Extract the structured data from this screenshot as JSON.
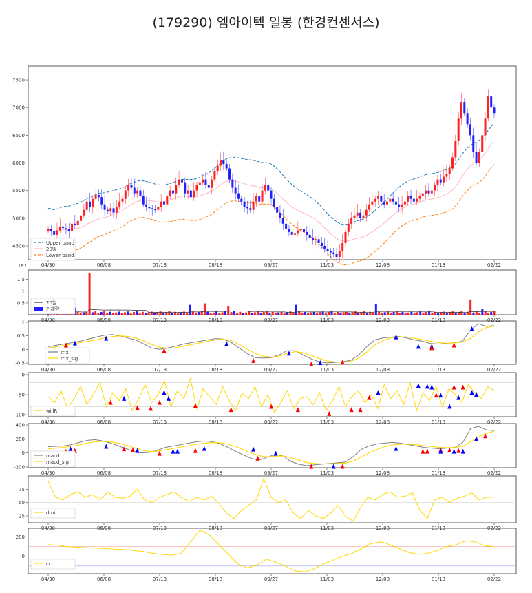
{
  "title": "(179290) 엠아이텍 일봉 (한경컨센서스)",
  "colors": {
    "up": "#ff2020",
    "down": "#2020ff",
    "upper": "#1f77b4",
    "lower": "#ff7f0e",
    "ma": "#ffb6c1",
    "signal": "#ffd700",
    "main": "#808080",
    "up_marker": "#ff0000",
    "down_marker": "#0000ff",
    "ref_red": "#f4a0a0",
    "ref_blue": "#a0a0f4",
    "ref_gray": "#c8c8c8"
  },
  "x_ticks": [
    "04/30",
    "06/08",
    "07/13",
    "08/18",
    "09/27",
    "11/03",
    "12/08",
    "01/13",
    "02/22"
  ],
  "chart_data": [
    {
      "type": "candlestick",
      "panel": "price",
      "ylim": [
        4250,
        7750
      ],
      "yticks": [
        4500,
        5000,
        5500,
        6000,
        6500,
        7000,
        7500
      ],
      "close": [
        4800,
        4760,
        4700,
        4780,
        4850,
        4820,
        4800,
        4760,
        4900,
        4880,
        4950,
        5050,
        5150,
        5300,
        5200,
        5350,
        5420,
        5380,
        5250,
        5150,
        5120,
        5180,
        5100,
        5200,
        5300,
        5350,
        5500,
        5600,
        5550,
        5450,
        5500,
        5400,
        5250,
        5200,
        5180,
        5160,
        5150,
        5200,
        5300,
        5250,
        5400,
        5500,
        5450,
        5600,
        5700,
        5650,
        5450,
        5500,
        5380,
        5500,
        5600,
        5650,
        5700,
        5600,
        5550,
        5700,
        5850,
        5950,
        6050,
        5980,
        5900,
        5700,
        5550,
        5450,
        5350,
        5300,
        5200,
        5180,
        5150,
        5300,
        5400,
        5300,
        5500,
        5600,
        5500,
        5350,
        5200,
        5100,
        5000,
        4900,
        4800,
        4750,
        4700,
        4720,
        4780,
        4800,
        4750,
        4700,
        4650,
        4600,
        4620,
        4550,
        4500,
        4450,
        4400,
        4380,
        4350,
        4300,
        4400,
        4550,
        4750,
        4900,
        5000,
        5050,
        5100,
        5000,
        5050,
        5150,
        5250,
        5300,
        5350,
        5400,
        5300,
        5250,
        5300,
        5350,
        5300,
        5250,
        5200,
        5250,
        5300,
        5400,
        5350,
        5300,
        5350,
        5400,
        5450,
        5500,
        5450,
        5500,
        5600,
        5700,
        5650,
        5750,
        5800,
        5900,
        6100,
        6400,
        6800,
        7100,
        6900,
        6700,
        6500,
        6200,
        6000,
        6200,
        6500,
        6800,
        7200,
        7000,
        6900
      ],
      "title": "",
      "legend": [
        "Upper band",
        "20일",
        "Lower band"
      ],
      "legend_position": "lower-left"
    },
    {
      "type": "bar",
      "panel": "volume",
      "ylim": [
        0,
        1.9
      ],
      "yticks": [
        0.5,
        1.0,
        1.5
      ],
      "scale_note": "1e7",
      "spikes": [
        {
          "index": 14,
          "value": 1.78
        },
        {
          "index": 9,
          "value": 0.3
        },
        {
          "index": 48,
          "value": 0.42
        },
        {
          "index": 53,
          "value": 0.48
        },
        {
          "index": 61,
          "value": 0.38
        },
        {
          "index": 84,
          "value": 0.42
        },
        {
          "index": 111,
          "value": 0.47
        },
        {
          "index": 143,
          "value": 0.65
        },
        {
          "index": 147,
          "value": 0.25
        }
      ],
      "base_value": 0.06,
      "legend": [
        "20일",
        "거래량"
      ],
      "legend_position": "center-left"
    },
    {
      "type": "line",
      "panel": "trix",
      "ylim": [
        -0.55,
        1.05
      ],
      "yticks": [
        -0.5,
        0.0,
        0.5,
        1.0
      ],
      "trix": [
        0.1,
        0.15,
        0.2,
        0.25,
        0.3,
        0.38,
        0.45,
        0.52,
        0.55,
        0.5,
        0.42,
        0.35,
        0.2,
        0.05,
        0.0,
        0.05,
        0.12,
        0.2,
        0.25,
        0.3,
        0.35,
        0.4,
        0.38,
        0.25,
        0.05,
        -0.15,
        -0.3,
        -0.32,
        -0.3,
        -0.2,
        -0.05,
        -0.05,
        -0.2,
        -0.35,
        -0.45,
        -0.5,
        -0.48,
        -0.45,
        -0.4,
        -0.2,
        0.1,
        0.35,
        0.42,
        0.45,
        0.48,
        0.42,
        0.35,
        0.3,
        0.22,
        0.2,
        0.22,
        0.25,
        0.3,
        0.7,
        0.95,
        0.85,
        0.88
      ],
      "trix_sig": [
        0.05,
        0.1,
        0.15,
        0.2,
        0.25,
        0.3,
        0.35,
        0.42,
        0.47,
        0.5,
        0.48,
        0.42,
        0.32,
        0.18,
        0.08,
        0.04,
        0.06,
        0.12,
        0.18,
        0.24,
        0.3,
        0.35,
        0.38,
        0.33,
        0.18,
        0.0,
        -0.15,
        -0.25,
        -0.28,
        -0.25,
        -0.15,
        -0.08,
        -0.12,
        -0.22,
        -0.33,
        -0.42,
        -0.46,
        -0.47,
        -0.44,
        -0.32,
        -0.1,
        0.15,
        0.32,
        0.42,
        0.46,
        0.46,
        0.41,
        0.36,
        0.3,
        0.25,
        0.23,
        0.24,
        0.27,
        0.4,
        0.65,
        0.8,
        0.86
      ],
      "buy_markers": [
        0.22,
        0.07,
        0.54,
        0.74,
        0.93
      ],
      "sell_markers": [
        0.06,
        0.34,
        0.53,
        0.85,
        0.64,
        0.77
      ],
      "legend": [
        "trix",
        "trix_sig"
      ],
      "legend_position": "lower-left"
    },
    {
      "type": "line",
      "panel": "willR",
      "ylim": [
        -105,
        5
      ],
      "yticks": [
        -100,
        -50,
        0
      ],
      "ref_lines": [
        -20,
        -80
      ],
      "willR": [
        -55,
        -70,
        -40,
        -85,
        -60,
        -30,
        -75,
        -50,
        -20,
        -80,
        -45,
        -65,
        -35,
        -90,
        -60,
        -25,
        -70,
        -50,
        -15,
        -80,
        -40,
        -60,
        -10,
        -85,
        -35,
        -55,
        -75,
        -30,
        -65,
        -90,
        -45,
        -60,
        -30,
        -80,
        -50,
        -95,
        -70,
        -40,
        -85,
        -60,
        -55,
        -75,
        -45,
        -90,
        -65,
        -30,
        -80,
        -55,
        -40,
        -70,
        -50,
        -85,
        -25,
        -60,
        -40,
        -75,
        -20,
        -90,
        -45,
        -65,
        -30,
        -80,
        -35,
        -50,
        -70,
        -25,
        -45,
        -60,
        -30,
        -40
      ],
      "legend": [
        "willR"
      ],
      "legend_position": "lower-left"
    },
    {
      "type": "line",
      "panel": "macd",
      "ylim": [
        -210,
        420
      ],
      "yticks": [
        -200,
        0,
        200,
        400
      ],
      "macd": [
        90,
        95,
        100,
        120,
        150,
        180,
        190,
        170,
        140,
        100,
        60,
        20,
        0,
        10,
        40,
        80,
        100,
        120,
        140,
        160,
        170,
        160,
        130,
        80,
        20,
        -30,
        -80,
        -100,
        -60,
        -20,
        -40,
        -120,
        -160,
        -180,
        -170,
        -160,
        -150,
        -140,
        -130,
        -50,
        50,
        100,
        130,
        140,
        150,
        140,
        120,
        100,
        80,
        70,
        60,
        70,
        80,
        150,
        350,
        380,
        330,
        320
      ],
      "macd_sig": [
        60,
        70,
        80,
        95,
        115,
        140,
        160,
        165,
        160,
        140,
        110,
        75,
        40,
        20,
        25,
        45,
        65,
        85,
        105,
        125,
        140,
        148,
        145,
        125,
        90,
        45,
        0,
        -40,
        -55,
        -45,
        -42,
        -65,
        -100,
        -135,
        -150,
        -155,
        -155,
        -150,
        -145,
        -115,
        -60,
        0,
        50,
        90,
        115,
        125,
        125,
        118,
        105,
        92,
        80,
        75,
        77,
        95,
        160,
        230,
        280,
        310
      ],
      "legend": [
        "macd",
        "macd_sig"
      ],
      "legend_position": "lower-left"
    },
    {
      "type": "line",
      "panel": "dmi",
      "ylim": [
        12,
        100
      ],
      "yticks": [
        25,
        50,
        75
      ],
      "ref_lines": [
        50
      ],
      "dmi": [
        90,
        60,
        55,
        65,
        70,
        60,
        65,
        55,
        70,
        60,
        58,
        62,
        75,
        55,
        50,
        60,
        65,
        70,
        58,
        52,
        60,
        55,
        62,
        48,
        30,
        20,
        35,
        45,
        55,
        95,
        60,
        50,
        55,
        30,
        20,
        35,
        25,
        20,
        30,
        45,
        25,
        15,
        40,
        60,
        55,
        65,
        70,
        60,
        62,
        68,
        35,
        20,
        55,
        60,
        50,
        58,
        62,
        68,
        55,
        60,
        60
      ],
      "legend": [
        "dmi"
      ],
      "legend_position": "lower-left"
    },
    {
      "type": "line",
      "panel": "cci",
      "ylim": [
        -180,
        290
      ],
      "yticks": [
        0,
        200
      ],
      "ref_lines": [
        100,
        -100
      ],
      "cci": [
        120,
        115,
        100,
        95,
        90,
        85,
        80,
        75,
        70,
        60,
        50,
        30,
        20,
        10,
        30,
        150,
        270,
        220,
        120,
        20,
        -80,
        -120,
        -90,
        -30,
        -60,
        -100,
        -150,
        -160,
        -130,
        -80,
        -40,
        0,
        30,
        80,
        130,
        150,
        120,
        80,
        40,
        20,
        30,
        60,
        100,
        120,
        160,
        150,
        110,
        100
      ],
      "legend": [
        "cci"
      ],
      "legend_position": "lower-left"
    }
  ]
}
